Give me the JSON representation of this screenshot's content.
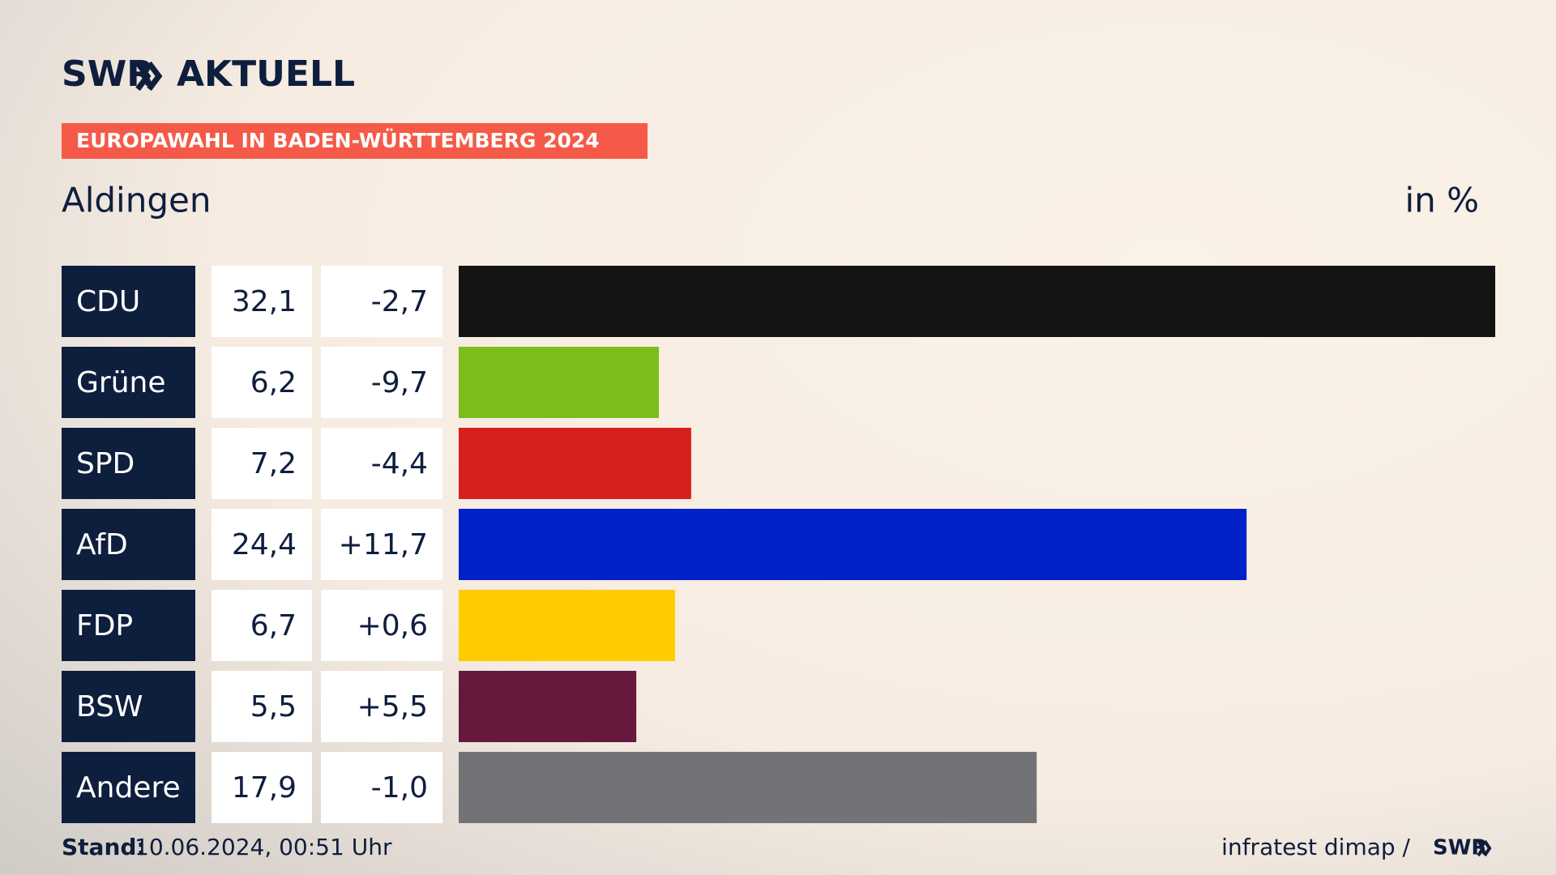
{
  "chart_data": {
    "type": "bar",
    "brand": "SWR",
    "brand_suffix": "AKTUELL",
    "banner": "EUROPAWAHL IN BADEN-WÜRTTEMBERG 2024",
    "title": "Aldingen",
    "unit_label": "in %",
    "categories": [
      "CDU",
      "Grüne",
      "SPD",
      "AfD",
      "FDP",
      "BSW",
      "Andere"
    ],
    "values": [
      32.1,
      6.2,
      7.2,
      24.4,
      6.7,
      5.5,
      17.9
    ],
    "value_labels": [
      "32,1",
      "6,2",
      "7,2",
      "24,4",
      "6,7",
      "5,5",
      "17,9"
    ],
    "changes": [
      -2.7,
      -9.7,
      -4.4,
      11.7,
      0.6,
      5.5,
      -1.0
    ],
    "change_labels": [
      "-2,7",
      "-9,7",
      "-4,4",
      "+11,7",
      "+0,6",
      "+5,5",
      "-1,0"
    ],
    "colors": [
      "#141414",
      "#7bbe1c",
      "#d61f1f",
      "#0020c8",
      "#ffcc00",
      "#66183d",
      "#727376"
    ],
    "footer_label": "Stand:",
    "footer_date": "10.06.2024, 00:51 Uhr",
    "source": "infratest dimap /",
    "source_brand": "SWR"
  }
}
